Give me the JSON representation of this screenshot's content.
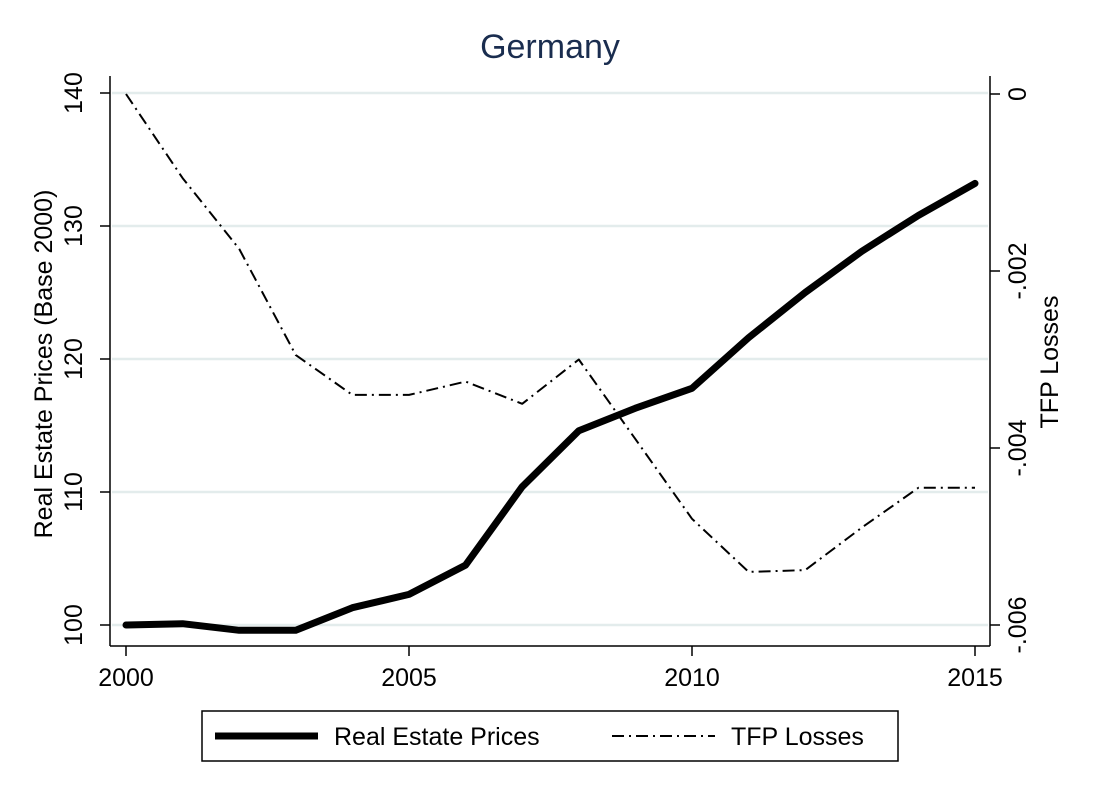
{
  "chart_data": {
    "type": "line",
    "title": "Germany",
    "x": [
      2000,
      2001,
      2002,
      2003,
      2004,
      2005,
      2006,
      2007,
      2008,
      2009,
      2010,
      2011,
      2012,
      2013,
      2014,
      2015
    ],
    "x_ticks": [
      2000,
      2005,
      2010,
      2015
    ],
    "x_tick_labels": [
      "2000",
      "2005",
      "2010",
      "2015"
    ],
    "xlim": [
      2000,
      2015
    ],
    "ylabel_left": "Real Estate Prices (Base 2000)",
    "ylabel_right": "TFP Losses",
    "ylim_left": [
      100,
      140
    ],
    "ylim_right": [
      -0.006,
      0
    ],
    "y_left_ticks": [
      100,
      110,
      120,
      130,
      140
    ],
    "y_left_tick_labels": [
      "100",
      "110",
      "120",
      "130",
      "140"
    ],
    "y_right_ticks": [
      -0.006,
      -0.004,
      -0.002,
      0
    ],
    "y_right_tick_labels": [
      "-.006",
      "-.004",
      "-.002",
      "0"
    ],
    "grid": true,
    "legend_position": "bottom",
    "series": [
      {
        "name": "Real Estate Prices",
        "axis": "left",
        "style": "solid-thick",
        "color": "#000000",
        "values": [
          100.0,
          100.1,
          99.6,
          99.6,
          101.3,
          102.3,
          104.5,
          110.4,
          114.6,
          116.3,
          117.8,
          121.6,
          125.0,
          128.1,
          130.8,
          133.2
        ]
      },
      {
        "name": "TFP Losses",
        "axis": "right",
        "style": "dash-dot",
        "color": "#000000",
        "values": [
          0.0,
          -0.00095,
          -0.00175,
          -0.00295,
          -0.0034,
          -0.0034,
          -0.00325,
          -0.0035,
          -0.003,
          -0.0039,
          -0.0048,
          -0.0054,
          -0.00538,
          -0.0049,
          -0.00445,
          -0.00445
        ]
      }
    ]
  }
}
